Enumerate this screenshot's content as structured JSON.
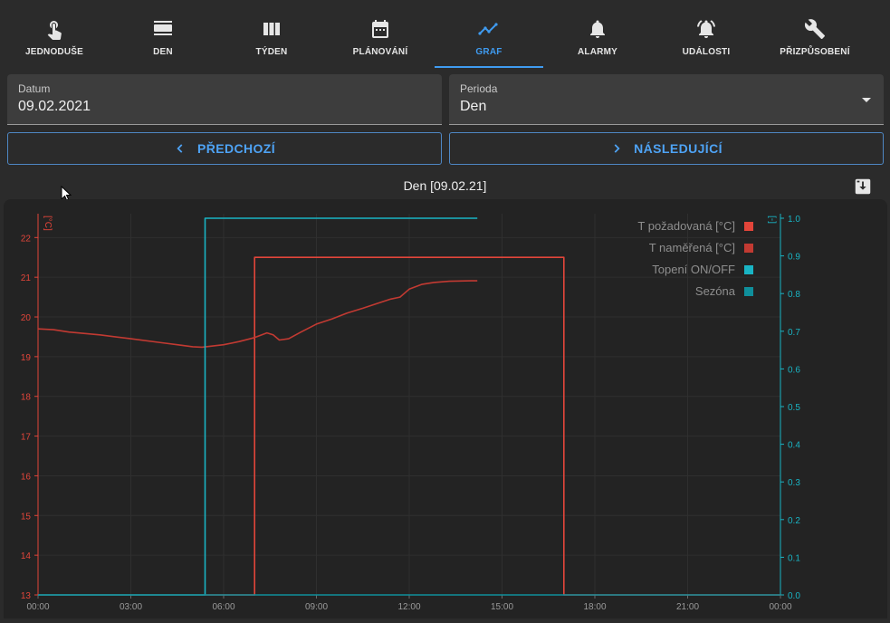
{
  "tabs": [
    {
      "label": "JEDNODUŠE",
      "icon": "touch-icon",
      "active": false
    },
    {
      "label": "DEN",
      "icon": "day-view-icon",
      "active": false
    },
    {
      "label": "TÝDEN",
      "icon": "week-view-icon",
      "active": false
    },
    {
      "label": "PLÁNOVÁNÍ",
      "icon": "calendar-icon",
      "active": false
    },
    {
      "label": "GRAF",
      "icon": "chart-line-icon",
      "active": true
    },
    {
      "label": "ALARMY",
      "icon": "bell-icon",
      "active": false
    },
    {
      "label": "UDÁLOSTI",
      "icon": "bell-ring-icon",
      "active": false
    },
    {
      "label": "PŘIZPŮSOBENÍ",
      "icon": "wrench-icon",
      "active": false
    }
  ],
  "date_field": {
    "label": "Datum",
    "value": "09.02.2021"
  },
  "period_field": {
    "label": "Perioda",
    "value": "Den"
  },
  "buttons": {
    "prev": "PŘEDCHOZÍ",
    "next": "NÁSLEDUJÍCÍ"
  },
  "chart_title": "Den [09.02.21]",
  "colors": {
    "accent": "#3f9bf0",
    "red": "#e2453a",
    "cyan": "#19b4c4",
    "teal": "#0f8f9b"
  },
  "chart_data": {
    "type": "line",
    "title": "Den [09.02.21]",
    "y_left": {
      "label": "[°C]",
      "min": 13,
      "max": 22.6,
      "ticks": [
        13,
        14,
        15,
        16,
        17,
        18,
        19,
        20,
        21,
        22
      ]
    },
    "y_right": {
      "label": "[-]",
      "min": 0,
      "max": 1.0,
      "ticks": [
        "0.0",
        "0.1",
        "0.2",
        "0.3",
        "0.4",
        "0.5",
        "0.6",
        "0.7",
        "0.8",
        "0.9",
        "1.0"
      ]
    },
    "x": {
      "min": 0,
      "max": 24,
      "tick_hours": [
        0,
        3,
        6,
        9,
        12,
        15,
        18,
        21,
        24
      ],
      "tick_labels": [
        "00:00",
        "03:00",
        "06:00",
        "09:00",
        "12:00",
        "15:00",
        "18:00",
        "21:00",
        "00:00"
      ]
    },
    "legend_position": "top-right",
    "series": [
      {
        "name": "T požadovaná [°C]",
        "color": "#e2453a",
        "axis": "left",
        "step": true,
        "points": [
          [
            0,
            13
          ],
          [
            7.0,
            13
          ],
          [
            7.0,
            21.5
          ],
          [
            17.0,
            21.5
          ],
          [
            17.0,
            13
          ],
          [
            24,
            13
          ]
        ]
      },
      {
        "name": "T naměřená [°C]",
        "color": "#c23a32",
        "axis": "left",
        "step": false,
        "points": [
          [
            0,
            19.7
          ],
          [
            0.5,
            19.68
          ],
          [
            1,
            19.62
          ],
          [
            2,
            19.55
          ],
          [
            3,
            19.45
          ],
          [
            4,
            19.35
          ],
          [
            4.5,
            19.3
          ],
          [
            5,
            19.25
          ],
          [
            5.3,
            19.24
          ],
          [
            6,
            19.3
          ],
          [
            6.5,
            19.38
          ],
          [
            7,
            19.48
          ],
          [
            7.4,
            19.6
          ],
          [
            7.6,
            19.55
          ],
          [
            7.8,
            19.42
          ],
          [
            8.1,
            19.45
          ],
          [
            8.5,
            19.62
          ],
          [
            9,
            19.82
          ],
          [
            9.5,
            19.95
          ],
          [
            10,
            20.1
          ],
          [
            10.5,
            20.22
          ],
          [
            11,
            20.35
          ],
          [
            11.4,
            20.45
          ],
          [
            11.7,
            20.5
          ],
          [
            12,
            20.7
          ],
          [
            12.4,
            20.82
          ],
          [
            12.8,
            20.87
          ],
          [
            13.3,
            20.9
          ],
          [
            14,
            20.91
          ],
          [
            14.2,
            20.91
          ]
        ]
      },
      {
        "name": "Topení ON/OFF",
        "color": "#19b4c4",
        "axis": "right",
        "step": true,
        "points": [
          [
            0,
            0
          ],
          [
            5.4,
            0
          ],
          [
            5.4,
            1
          ],
          [
            14.2,
            1
          ]
        ]
      },
      {
        "name": "Sezóna",
        "color": "#0f8f9b",
        "axis": "right",
        "step": true,
        "points": [
          [
            0,
            0
          ],
          [
            24,
            0
          ]
        ]
      }
    ]
  }
}
